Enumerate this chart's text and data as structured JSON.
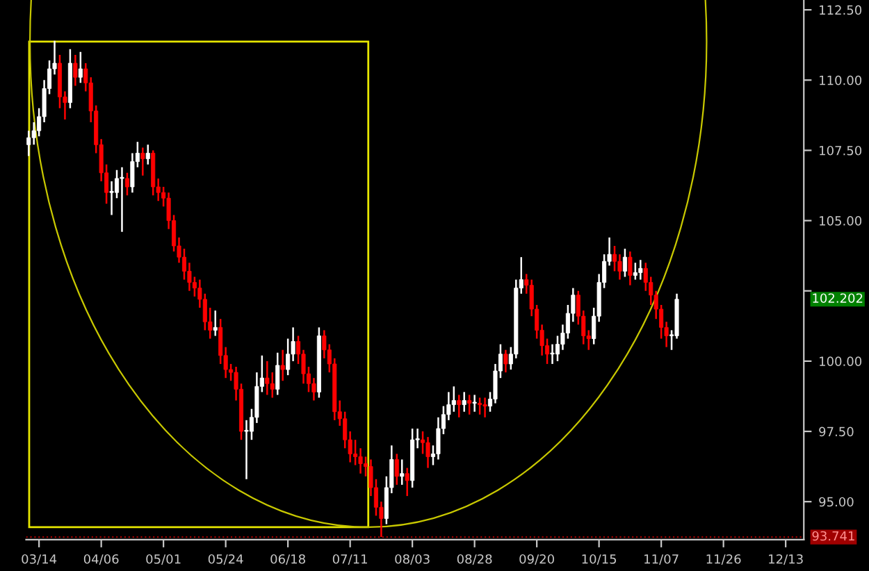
{
  "chart_data": {
    "type": "candlestick",
    "categories": [
      null,
      null,
      "03/14",
      null,
      null,
      null,
      null,
      null,
      null,
      null,
      null,
      null,
      null,
      null,
      "04/06",
      null,
      null,
      null,
      null,
      null,
      null,
      null,
      null,
      null,
      null,
      null,
      "05/01",
      null,
      null,
      null,
      null,
      null,
      null,
      null,
      null,
      null,
      null,
      null,
      "05/24",
      null,
      null,
      null,
      null,
      null,
      null,
      null,
      null,
      null,
      null,
      null,
      "06/18",
      null,
      null,
      null,
      null,
      null,
      null,
      null,
      null,
      null,
      null,
      null,
      "07/11",
      null,
      null,
      null,
      null,
      null,
      null,
      null,
      null,
      null,
      null,
      null,
      "08/03",
      null,
      null,
      null,
      null,
      null,
      null,
      null,
      null,
      null,
      null,
      null,
      "08/28",
      null,
      null,
      null,
      null,
      null,
      null,
      null,
      null,
      null,
      null,
      null,
      "09/20",
      null,
      null,
      null,
      null,
      null,
      null,
      null,
      null,
      null,
      null,
      null,
      "10/15",
      null,
      null,
      null,
      null,
      null,
      null,
      null,
      null,
      null,
      null,
      null,
      "11/07",
      null,
      null,
      null,
      null,
      null,
      null,
      null,
      null,
      null,
      null,
      null,
      "11/26",
      null,
      null,
      null,
      null,
      null,
      null,
      null,
      null,
      null,
      null,
      null,
      "12/13",
      null,
      null,
      null
    ],
    "ohlc": [
      [
        107.7,
        108.2,
        107.3,
        107.95
      ],
      [
        107.95,
        108.5,
        107.7,
        108.2
      ],
      [
        108.2,
        109.0,
        108.0,
        108.7
      ],
      [
        108.7,
        110.0,
        108.5,
        109.7
      ],
      [
        109.7,
        110.7,
        109.5,
        110.4
      ],
      [
        110.4,
        111.4,
        110.2,
        110.6
      ],
      [
        110.6,
        110.9,
        109.0,
        109.4
      ],
      [
        109.4,
        109.6,
        108.6,
        109.2
      ],
      [
        109.2,
        111.1,
        109.0,
        110.6
      ],
      [
        110.6,
        110.9,
        109.8,
        110.1
      ],
      [
        110.1,
        111.0,
        109.9,
        110.4
      ],
      [
        110.4,
        110.6,
        109.6,
        109.9
      ],
      [
        109.9,
        110.1,
        108.5,
        108.9
      ],
      [
        108.9,
        109.1,
        107.4,
        107.7
      ],
      [
        107.7,
        107.9,
        106.4,
        106.7
      ],
      [
        106.7,
        107.0,
        105.6,
        106.0
      ],
      [
        106.0,
        106.4,
        105.2,
        106.0
      ],
      [
        106.0,
        106.8,
        105.8,
        106.5
      ],
      [
        106.5,
        106.9,
        104.6,
        106.5
      ],
      [
        106.5,
        106.7,
        105.9,
        106.2
      ],
      [
        106.2,
        107.4,
        106.0,
        107.1
      ],
      [
        107.1,
        107.8,
        106.9,
        107.4
      ],
      [
        107.4,
        107.6,
        106.6,
        107.2
      ],
      [
        107.2,
        107.7,
        107.0,
        107.4
      ],
      [
        107.4,
        107.5,
        105.9,
        106.2
      ],
      [
        106.2,
        106.5,
        105.7,
        106.0
      ],
      [
        106.0,
        106.2,
        105.5,
        105.8
      ],
      [
        105.8,
        106.0,
        104.7,
        105.0
      ],
      [
        105.0,
        105.2,
        103.9,
        104.1
      ],
      [
        104.1,
        104.4,
        103.5,
        103.7
      ],
      [
        103.7,
        104.0,
        102.9,
        103.2
      ],
      [
        103.2,
        103.5,
        102.5,
        102.8
      ],
      [
        102.8,
        103.0,
        102.3,
        102.6
      ],
      [
        102.6,
        102.9,
        101.9,
        102.2
      ],
      [
        102.2,
        102.4,
        101.1,
        101.4
      ],
      [
        101.4,
        101.9,
        100.8,
        101.1
      ],
      [
        101.1,
        101.8,
        100.9,
        101.2
      ],
      [
        101.2,
        101.5,
        99.9,
        100.2
      ],
      [
        100.2,
        100.5,
        99.4,
        99.7
      ],
      [
        99.7,
        99.9,
        99.3,
        99.6
      ],
      [
        99.6,
        99.8,
        98.6,
        99.0
      ],
      [
        99.0,
        99.2,
        97.2,
        97.5
      ],
      [
        97.5,
        97.9,
        95.8,
        97.5
      ],
      [
        97.5,
        98.3,
        97.2,
        98.0
      ],
      [
        98.0,
        99.6,
        97.8,
        99.1
      ],
      [
        99.1,
        100.2,
        98.9,
        99.4
      ],
      [
        99.4,
        100.0,
        98.8,
        99.2
      ],
      [
        99.2,
        99.6,
        98.7,
        99.0
      ],
      [
        99.0,
        100.3,
        98.8,
        99.85
      ],
      [
        99.85,
        100.4,
        99.3,
        99.7
      ],
      [
        99.7,
        100.8,
        99.5,
        100.25
      ],
      [
        100.25,
        101.2,
        100.0,
        100.7
      ],
      [
        100.7,
        100.9,
        99.9,
        100.25
      ],
      [
        100.25,
        100.4,
        99.2,
        99.55
      ],
      [
        99.55,
        99.8,
        98.9,
        99.2
      ],
      [
        99.2,
        99.4,
        98.6,
        98.9
      ],
      [
        98.9,
        101.2,
        98.7,
        100.9
      ],
      [
        100.9,
        101.1,
        100.1,
        100.4
      ],
      [
        100.4,
        100.6,
        99.6,
        99.9
      ],
      [
        99.9,
        100.1,
        97.9,
        98.2
      ],
      [
        98.2,
        98.6,
        97.7,
        97.95
      ],
      [
        97.95,
        98.2,
        96.9,
        97.2
      ],
      [
        97.2,
        97.5,
        96.4,
        96.7
      ],
      [
        96.7,
        97.2,
        96.3,
        96.6
      ],
      [
        96.6,
        96.9,
        96.0,
        96.35
      ],
      [
        96.35,
        96.6,
        95.9,
        96.25
      ],
      [
        96.25,
        96.5,
        95.2,
        95.5
      ],
      [
        95.5,
        95.8,
        94.5,
        94.8
      ],
      [
        94.8,
        95.0,
        93.741,
        94.4
      ],
      [
        94.4,
        95.9,
        94.2,
        95.5
      ],
      [
        95.5,
        97.0,
        95.3,
        96.5
      ],
      [
        96.5,
        96.7,
        95.6,
        95.9
      ],
      [
        95.9,
        96.5,
        95.6,
        96.0
      ],
      [
        96.0,
        96.2,
        95.2,
        95.75
      ],
      [
        95.75,
        97.6,
        95.5,
        97.2
      ],
      [
        97.2,
        97.6,
        96.9,
        97.2
      ],
      [
        97.2,
        97.5,
        96.7,
        97.1
      ],
      [
        97.1,
        97.3,
        96.2,
        96.6
      ],
      [
        96.6,
        97.0,
        96.3,
        96.7
      ],
      [
        96.7,
        98.0,
        96.5,
        97.6
      ],
      [
        97.6,
        98.4,
        97.4,
        98.1
      ],
      [
        98.1,
        98.9,
        97.9,
        98.45
      ],
      [
        98.45,
        99.1,
        98.2,
        98.6
      ],
      [
        98.6,
        98.8,
        98.0,
        98.45
      ],
      [
        98.45,
        98.9,
        98.2,
        98.6
      ],
      [
        98.6,
        98.8,
        98.1,
        98.5
      ],
      [
        98.5,
        98.8,
        98.2,
        98.5
      ],
      [
        98.5,
        98.7,
        98.1,
        98.45
      ],
      [
        98.45,
        98.7,
        98.0,
        98.4
      ],
      [
        98.4,
        98.9,
        98.2,
        98.65
      ],
      [
        98.65,
        99.9,
        98.5,
        99.65
      ],
      [
        99.65,
        100.6,
        99.4,
        100.25
      ],
      [
        100.25,
        100.4,
        99.6,
        99.9
      ],
      [
        99.9,
        100.5,
        99.7,
        100.25
      ],
      [
        100.25,
        102.9,
        100.1,
        102.6
      ],
      [
        102.6,
        103.7,
        102.4,
        102.9
      ],
      [
        102.9,
        103.1,
        102.4,
        102.7
      ],
      [
        102.7,
        102.9,
        101.6,
        101.85
      ],
      [
        101.85,
        102.0,
        100.8,
        101.1
      ],
      [
        101.1,
        101.3,
        100.2,
        100.55
      ],
      [
        100.55,
        100.8,
        99.9,
        100.25
      ],
      [
        100.25,
        100.6,
        99.9,
        100.25
      ],
      [
        100.25,
        100.9,
        100.0,
        100.6
      ],
      [
        100.6,
        101.3,
        100.4,
        101.0
      ],
      [
        101.0,
        102.0,
        100.8,
        101.7
      ],
      [
        101.7,
        102.6,
        101.4,
        102.35
      ],
      [
        102.35,
        102.5,
        101.3,
        101.6
      ],
      [
        101.6,
        101.8,
        100.6,
        100.9
      ],
      [
        100.9,
        101.1,
        100.4,
        100.8
      ],
      [
        100.8,
        101.9,
        100.6,
        101.6
      ],
      [
        101.6,
        103.1,
        101.4,
        102.8
      ],
      [
        102.8,
        103.8,
        102.6,
        103.55
      ],
      [
        103.55,
        104.4,
        103.4,
        103.8
      ],
      [
        103.8,
        104.1,
        103.2,
        103.55
      ],
      [
        103.55,
        103.8,
        102.9,
        103.2
      ],
      [
        103.2,
        104.0,
        103.0,
        103.7
      ],
      [
        103.7,
        103.9,
        102.7,
        103.05
      ],
      [
        103.05,
        103.5,
        102.9,
        103.15
      ],
      [
        103.15,
        103.6,
        102.9,
        103.3
      ],
      [
        103.3,
        103.5,
        102.5,
        102.8
      ],
      [
        102.8,
        103.0,
        102.0,
        102.35
      ],
      [
        102.35,
        102.5,
        101.5,
        101.85
      ],
      [
        101.85,
        102.0,
        100.8,
        101.2
      ],
      [
        101.2,
        101.4,
        100.5,
        100.9
      ],
      [
        100.9,
        101.1,
        100.4,
        100.9
      ],
      [
        100.9,
        102.4,
        100.8,
        102.202
      ],
      null,
      null,
      null,
      null,
      null,
      null,
      null,
      null,
      null,
      null,
      null,
      null,
      null,
      null,
      null,
      null,
      null,
      null,
      null,
      null,
      null,
      null,
      null,
      null
    ],
    "ylim": [
      93.65,
      112.85
    ],
    "yticks": [
      {
        "value": 95,
        "label": "95.00"
      },
      {
        "value": 97.5,
        "label": "97.50"
      },
      {
        "value": 100,
        "label": "100.00"
      },
      {
        "value": 102.5,
        "label": null
      },
      {
        "value": 105,
        "label": "105.00"
      },
      {
        "value": 107.5,
        "label": "107.50"
      },
      {
        "value": 110,
        "label": "110.00"
      },
      {
        "value": 112.5,
        "label": "112.50"
      }
    ],
    "ref_lines": [
      {
        "axis": "y",
        "value": 93.741,
        "label": "93.741",
        "color": "#a00000",
        "line_style": "dotted"
      }
    ],
    "annotations": [
      "102.202"
    ],
    "grid": false
  }
}
